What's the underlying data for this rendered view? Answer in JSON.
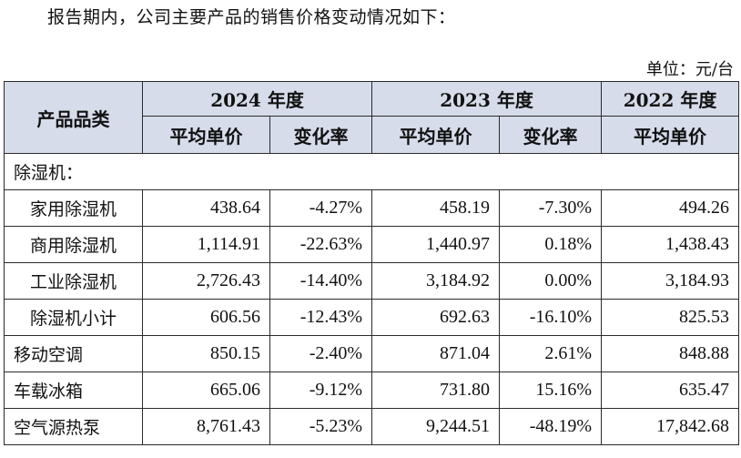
{
  "intro_text": "报告期内，公司主要产品的销售价格变动情况如下：",
  "unit_text": "单位：元/台",
  "table": {
    "category_header": "产品品类",
    "year_2024": "2024 年度",
    "year_2023": "2023 年度",
    "year_2022": "2022 年度",
    "col_avg_price": "平均单价",
    "col_change_rate": "变化率",
    "section_label": "除湿机：",
    "rows": [
      {
        "name": "家用除湿机",
        "p2024": "438.64",
        "c2024": "-4.27%",
        "p2023": "458.19",
        "c2023": "-7.30%",
        "p2022": "494.26"
      },
      {
        "name": "商用除湿机",
        "p2024": "1,114.91",
        "c2024": "-22.63%",
        "p2023": "1,440.97",
        "c2023": "0.18%",
        "p2022": "1,438.43"
      },
      {
        "name": "工业除湿机",
        "p2024": "2,726.43",
        "c2024": "-14.40%",
        "p2023": "3,184.92",
        "c2023": "0.00%",
        "p2022": "3,184.93"
      },
      {
        "name": "除湿机小计",
        "p2024": "606.56",
        "c2024": "-12.43%",
        "p2023": "692.63",
        "c2023": "-16.10%",
        "p2022": "825.53"
      },
      {
        "name": "移动空调",
        "p2024": "850.15",
        "c2024": "-2.40%",
        "p2023": "871.04",
        "c2023": "2.61%",
        "p2022": "848.88"
      },
      {
        "name": "车载冰箱",
        "p2024": "665.06",
        "c2024": "-9.12%",
        "p2023": "731.80",
        "c2023": "15.16%",
        "p2022": "635.47"
      },
      {
        "name": "空气源热泵",
        "p2024": "8,761.43",
        "c2024": "-5.23%",
        "p2023": "9,244.51",
        "c2023": "-48.19%",
        "p2022": "17,842.68"
      }
    ]
  }
}
